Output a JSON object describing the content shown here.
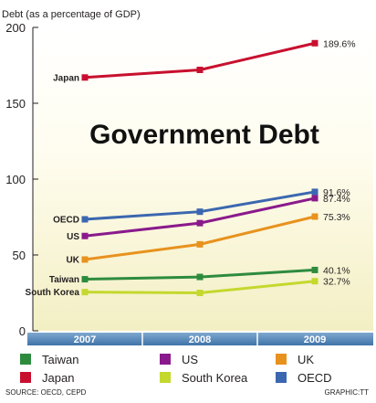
{
  "chart_data": {
    "type": "line",
    "title": "Government Debt",
    "ylabel": "Debt (as a percentage of GDP)",
    "ylim": [
      0,
      200
    ],
    "yticks": [
      0,
      50,
      100,
      150,
      200
    ],
    "categories": [
      "2007",
      "2008",
      "2009"
    ],
    "series": [
      {
        "name": "Japan",
        "color": "#c8102e",
        "values": [
          167,
          172,
          189.6
        ],
        "end_label": "189.6%"
      },
      {
        "name": "OECD",
        "color": "#3b67b0",
        "values": [
          73.5,
          78.5,
          91.6
        ],
        "end_label": "91.6%"
      },
      {
        "name": "US",
        "color": "#8a1a8c",
        "values": [
          62.5,
          71,
          87.4
        ],
        "end_label": "87.4%"
      },
      {
        "name": "UK",
        "color": "#e8921e",
        "values": [
          47,
          57,
          75.3
        ],
        "end_label": "75.3%"
      },
      {
        "name": "Taiwan",
        "color": "#2e8b3e",
        "values": [
          34,
          35.5,
          40.1
        ],
        "end_label": "40.1%"
      },
      {
        "name": "South Korea",
        "color": "#c4d82e",
        "values": [
          25.5,
          25,
          32.7
        ],
        "end_label": "32.7%"
      }
    ],
    "legend": [
      {
        "name": "Taiwan",
        "color": "#2e8b3e"
      },
      {
        "name": "US",
        "color": "#8a1a8c"
      },
      {
        "name": "UK",
        "color": "#e8921e"
      },
      {
        "name": "Japan",
        "color": "#c8102e"
      },
      {
        "name": "South Korea",
        "color": "#c4d82e"
      },
      {
        "name": "OECD",
        "color": "#3b67b0"
      }
    ],
    "legend_placement": "bottom",
    "grid": false
  },
  "footer": {
    "source": "SOURCE: OECD, CEPD",
    "credit": "GRAPHIC:TT"
  }
}
